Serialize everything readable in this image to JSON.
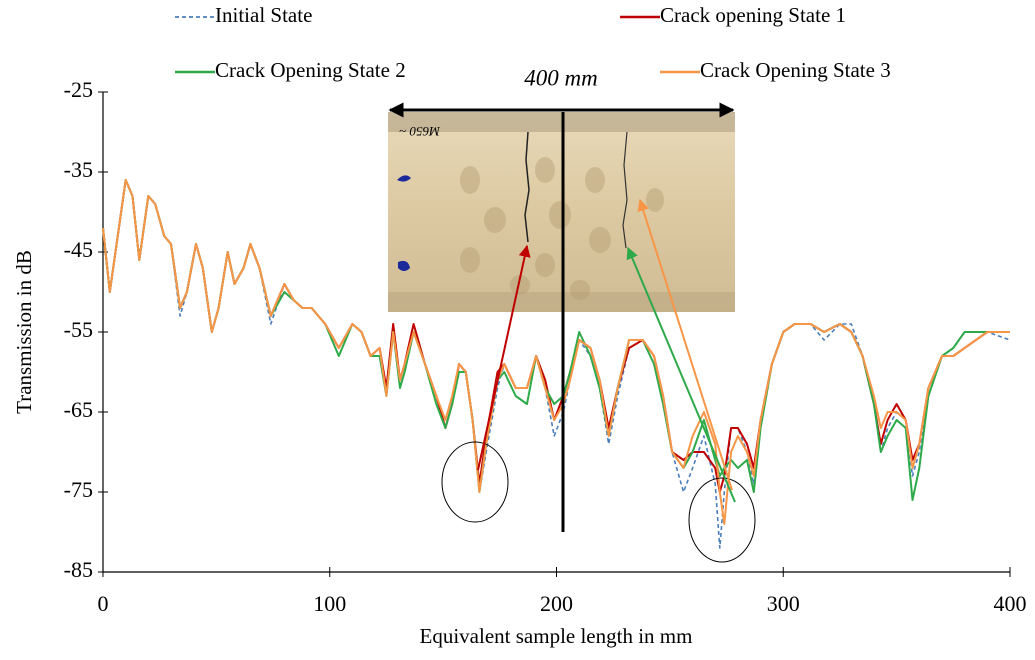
{
  "chart_data": {
    "type": "line",
    "annotation": "400 mm",
    "x_label": "Equivalent sample length in mm",
    "y_label": "Transmission in dB",
    "xlim": [
      0,
      400
    ],
    "xticks": [
      0,
      100,
      200,
      300,
      400
    ],
    "ylim": [
      -85,
      -25
    ],
    "yticks": [
      -25,
      -35,
      -45,
      -55,
      -65,
      -75,
      -85
    ],
    "x": [
      0,
      3,
      6,
      10,
      13,
      16,
      20,
      23,
      27,
      30,
      34,
      37,
      41,
      44,
      48,
      51,
      55,
      58,
      62,
      65,
      69,
      74,
      80,
      84,
      88,
      92,
      98,
      104,
      110,
      114,
      118,
      122,
      125,
      128,
      131,
      133,
      137,
      142,
      147,
      151,
      154,
      157,
      160,
      163,
      166,
      169,
      174,
      177,
      182,
      187,
      191,
      195,
      199,
      203,
      206,
      210,
      215,
      219,
      223,
      227,
      232,
      238,
      243,
      247,
      251,
      256,
      260,
      265,
      270,
      272,
      274,
      277,
      280,
      284,
      287,
      290,
      295,
      300,
      305,
      312,
      318,
      325,
      330,
      335,
      340,
      343,
      346,
      350,
      354,
      357,
      360,
      364,
      370,
      375,
      380,
      390,
      400
    ],
    "series": [
      {
        "name": "Initial State",
        "color": "#4a7ebb",
        "dashed": true,
        "values": [
          -42,
          -50,
          -44,
          -36,
          -38,
          -46,
          -38,
          -39,
          -43,
          -44,
          -53,
          -50,
          -44,
          -47,
          -55,
          -52,
          -45,
          -49,
          -47,
          -44,
          -47,
          -54,
          -49,
          -51,
          -52,
          -52,
          -54,
          -57,
          -54,
          -55,
          -58,
          -58,
          -63,
          -54,
          -62,
          -60,
          -55,
          -59,
          -63,
          -67,
          -64,
          -59,
          -60,
          -66,
          -75,
          -70,
          -62,
          -59,
          -62,
          -62,
          -58,
          -62,
          -68,
          -65,
          -61,
          -56,
          -58,
          -62,
          -69,
          -63,
          -57,
          -56,
          -59,
          -64,
          -70,
          -75,
          -72,
          -68,
          -74,
          -82,
          -75,
          -67,
          -67,
          -70,
          -74,
          -66,
          -59,
          -55,
          -54,
          -54,
          -56,
          -54,
          -54,
          -58,
          -64,
          -70,
          -67,
          -65,
          -66,
          -73,
          -70,
          -62,
          -58,
          -58,
          -57,
          -55,
          -56
        ]
      },
      {
        "name": "Crack opening State 1",
        "color": "#c00000",
        "dashed": false,
        "values": [
          -42,
          -50,
          -44,
          -36,
          -38,
          -46,
          -38,
          -39,
          -43,
          -44,
          -52,
          -50,
          -44,
          -47,
          -55,
          -52,
          -45,
          -49,
          -47,
          -44,
          -47,
          -53,
          -49,
          -51,
          -52,
          -52,
          -54,
          -57,
          -54,
          -55,
          -58,
          -57,
          -62,
          -54,
          -61,
          -59,
          -54,
          -59,
          -63,
          -67,
          -64,
          -59,
          -60,
          -66,
          -74,
          -68,
          -60,
          -59,
          -62,
          -62,
          -58,
          -61,
          -66,
          -63,
          -60,
          -56,
          -57,
          -61,
          -67,
          -62,
          -57,
          -56,
          -58,
          -63,
          -70,
          -71,
          -70,
          -70,
          -72,
          -75,
          -73,
          -67,
          -67,
          -69,
          -72,
          -66,
          -59,
          -55,
          -54,
          -54,
          -55,
          -54,
          -55,
          -58,
          -64,
          -69,
          -66,
          -64,
          -66,
          -71,
          -69,
          -62,
          -58,
          -58,
          -57,
          -55,
          -55
        ]
      },
      {
        "name": "Crack Opening State 2",
        "color": "#2eaa4a",
        "dashed": false,
        "values": [
          -42,
          -50,
          -44,
          -36,
          -38,
          -46,
          -38,
          -39,
          -43,
          -44,
          -52,
          -50,
          -44,
          -47,
          -55,
          -52,
          -45,
          -49,
          -47,
          -44,
          -47,
          -53,
          -50,
          -51,
          -52,
          -52,
          -54,
          -58,
          -54,
          -55,
          -58,
          -58,
          -63,
          -55,
          -62,
          -60,
          -55,
          -59,
          -64,
          -67,
          -64,
          -60,
          -60,
          -66,
          -75,
          -69,
          -61,
          -60,
          -63,
          -64,
          -58,
          -62,
          -64,
          -63,
          -60,
          -55,
          -58,
          -62,
          -68,
          -62,
          -56,
          -56,
          -59,
          -64,
          -70,
          -72,
          -70,
          -66,
          -71,
          -73,
          -72,
          -71,
          -72,
          -71,
          -75,
          -67,
          -59,
          -55,
          -54,
          -54,
          -55,
          -54,
          -55,
          -58,
          -64,
          -70,
          -68,
          -66,
          -67,
          -76,
          -72,
          -63,
          -58,
          -57,
          -55,
          -55,
          -55
        ]
      },
      {
        "name": "Crack Opening State 3",
        "color": "#f79646",
        "dashed": false,
        "values": [
          -42,
          -50,
          -44,
          -36,
          -38,
          -46,
          -38,
          -39,
          -43,
          -44,
          -52,
          -50,
          -44,
          -47,
          -55,
          -52,
          -45,
          -49,
          -47,
          -44,
          -47,
          -53,
          -49,
          -51,
          -52,
          -52,
          -54,
          -57,
          -54,
          -55,
          -58,
          -57,
          -63,
          -55,
          -61,
          -59,
          -55,
          -59,
          -63,
          -66,
          -63,
          -59,
          -60,
          -66,
          -75,
          -69,
          -61,
          -59,
          -62,
          -62,
          -58,
          -62,
          -66,
          -64,
          -61,
          -56,
          -57,
          -61,
          -68,
          -62,
          -56,
          -56,
          -58,
          -63,
          -70,
          -72,
          -68,
          -65,
          -69,
          -75,
          -79,
          -70,
          -68,
          -70,
          -73,
          -66,
          -59,
          -55,
          -54,
          -54,
          -55,
          -54,
          -55,
          -58,
          -63,
          -67,
          -65,
          -65,
          -66,
          -72,
          -69,
          -62,
          -58,
          -58,
          -57,
          -55,
          -55
        ]
      }
    ]
  }
}
